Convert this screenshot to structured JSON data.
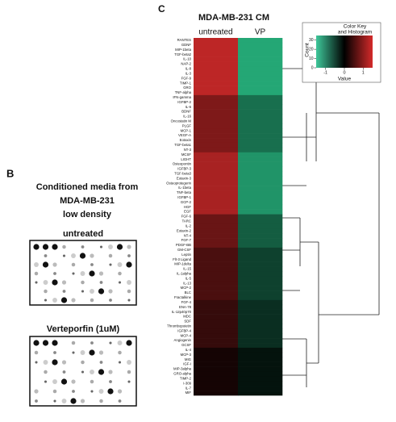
{
  "panel_b": {
    "label": "B",
    "title_lines": [
      "Conditioned media from",
      "MDA-MB-231",
      "low density"
    ],
    "blots": [
      "untreated",
      "Verteporfin (1uM)"
    ]
  },
  "chart_data": {
    "type": "heatmap",
    "panel_label": "C",
    "title": "MDA-MB-231 CM",
    "columns": [
      "untreated",
      "VP"
    ],
    "rows": [
      "RANTES",
      "GDNF",
      "MIP-1beta",
      "TGF-beta2",
      "IL-10",
      "NAP-2",
      "IL-8",
      "IL-3",
      "FGF-9",
      "TIMP-1",
      "GRO",
      "TNF-alpha",
      "IFN-gamma",
      "IGFBP-2",
      "IL-6",
      "BDNF",
      "IL-16",
      "Oncostatin M",
      "PLGF",
      "MCP-1",
      "VEGF-A",
      "Eotaxin",
      "TGF-beta1",
      "NT-3",
      "MCSF",
      "LIGHT",
      "Osteopontin",
      "IGFBP-3",
      "TGF-beta3",
      "Eotaxin-3",
      "Osteoprotegerin",
      "IL-1beta",
      "TNF-beta",
      "IGFBP-1",
      "GCP-2",
      "HGF",
      "EGF",
      "FGF-6",
      "TARC",
      "IL-2",
      "Eotaxin-2",
      "NT-4",
      "FGF-7",
      "PDGF-BB",
      "GM-CSF",
      "Leptin",
      "Flt-3 Ligand",
      "MIP-1delta",
      "IL-15",
      "IL-1alpha",
      "IL-5",
      "IL-13",
      "MCP-2",
      "BLC",
      "Fractalkine",
      "FGF-4",
      "ENA-78",
      "IL-12p40p70",
      "MDC",
      "SDF",
      "Thrombopoietin",
      "IGFBP-4",
      "MCP-4",
      "Angiogenin",
      "GCSF",
      "IL-4",
      "MCP-3",
      "MIG",
      "IGF-I",
      "MIP-3alpha",
      "GRO-alpha",
      "TIMP-2",
      "I-309",
      "IL-7",
      "MIF"
    ],
    "values": [
      [
        0.9,
        -0.9
      ],
      [
        0.9,
        -0.9
      ],
      [
        0.9,
        -0.9
      ],
      [
        0.9,
        -0.9
      ],
      [
        0.9,
        -0.9
      ],
      [
        0.9,
        -0.9
      ],
      [
        0.9,
        -0.9
      ],
      [
        0.9,
        -0.9
      ],
      [
        0.9,
        -0.9
      ],
      [
        0.9,
        -0.9
      ],
      [
        0.9,
        -0.9
      ],
      [
        0.9,
        -0.9
      ],
      [
        0.6,
        -0.6
      ],
      [
        0.6,
        -0.6
      ],
      [
        0.6,
        -0.6
      ],
      [
        0.6,
        -0.6
      ],
      [
        0.6,
        -0.6
      ],
      [
        0.6,
        -0.6
      ],
      [
        0.6,
        -0.6
      ],
      [
        0.6,
        -0.6
      ],
      [
        0.6,
        -0.6
      ],
      [
        0.6,
        -0.6
      ],
      [
        0.6,
        -0.6
      ],
      [
        0.6,
        -0.6
      ],
      [
        0.8,
        -0.8
      ],
      [
        0.8,
        -0.8
      ],
      [
        0.8,
        -0.8
      ],
      [
        0.8,
        -0.8
      ],
      [
        0.8,
        -0.8
      ],
      [
        0.8,
        -0.8
      ],
      [
        0.8,
        -0.8
      ],
      [
        0.8,
        -0.8
      ],
      [
        0.8,
        -0.8
      ],
      [
        0.8,
        -0.8
      ],
      [
        0.8,
        -0.8
      ],
      [
        0.8,
        -0.8
      ],
      [
        0.8,
        -0.8
      ],
      [
        0.5,
        -0.5
      ],
      [
        0.5,
        -0.5
      ],
      [
        0.5,
        -0.5
      ],
      [
        0.5,
        -0.5
      ],
      [
        0.5,
        -0.5
      ],
      [
        0.5,
        -0.5
      ],
      [
        0.5,
        -0.5
      ],
      [
        0.35,
        -0.35
      ],
      [
        0.35,
        -0.35
      ],
      [
        0.35,
        -0.35
      ],
      [
        0.35,
        -0.35
      ],
      [
        0.35,
        -0.35
      ],
      [
        0.35,
        -0.35
      ],
      [
        0.35,
        -0.35
      ],
      [
        0.35,
        -0.35
      ],
      [
        0.35,
        -0.35
      ],
      [
        0.35,
        -0.35
      ],
      [
        0.35,
        -0.35
      ],
      [
        0.25,
        -0.25
      ],
      [
        0.25,
        -0.25
      ],
      [
        0.25,
        -0.25
      ],
      [
        0.25,
        -0.25
      ],
      [
        0.25,
        -0.25
      ],
      [
        0.25,
        -0.25
      ],
      [
        0.25,
        -0.25
      ],
      [
        0.25,
        -0.25
      ],
      [
        0.25,
        -0.25
      ],
      [
        0.25,
        -0.25
      ],
      [
        0.1,
        -0.1
      ],
      [
        0.1,
        -0.1
      ],
      [
        0.1,
        -0.1
      ],
      [
        0.1,
        -0.1
      ],
      [
        0.1,
        -0.1
      ],
      [
        0.1,
        -0.1
      ],
      [
        0.1,
        -0.1
      ],
      [
        0.1,
        -0.1
      ],
      [
        0.1,
        -0.1
      ],
      [
        0.1,
        -0.1
      ]
    ],
    "colorbar": {
      "title_lines": [
        "Color Key",
        "and Histogram"
      ],
      "xlabel": "Value",
      "ylabel": "Count",
      "xlim": [
        -1.5,
        1.5
      ],
      "xticks": [
        -1,
        0,
        1
      ],
      "ylim": [
        0,
        35
      ],
      "yticks": [
        0,
        10,
        20,
        30
      ]
    }
  }
}
